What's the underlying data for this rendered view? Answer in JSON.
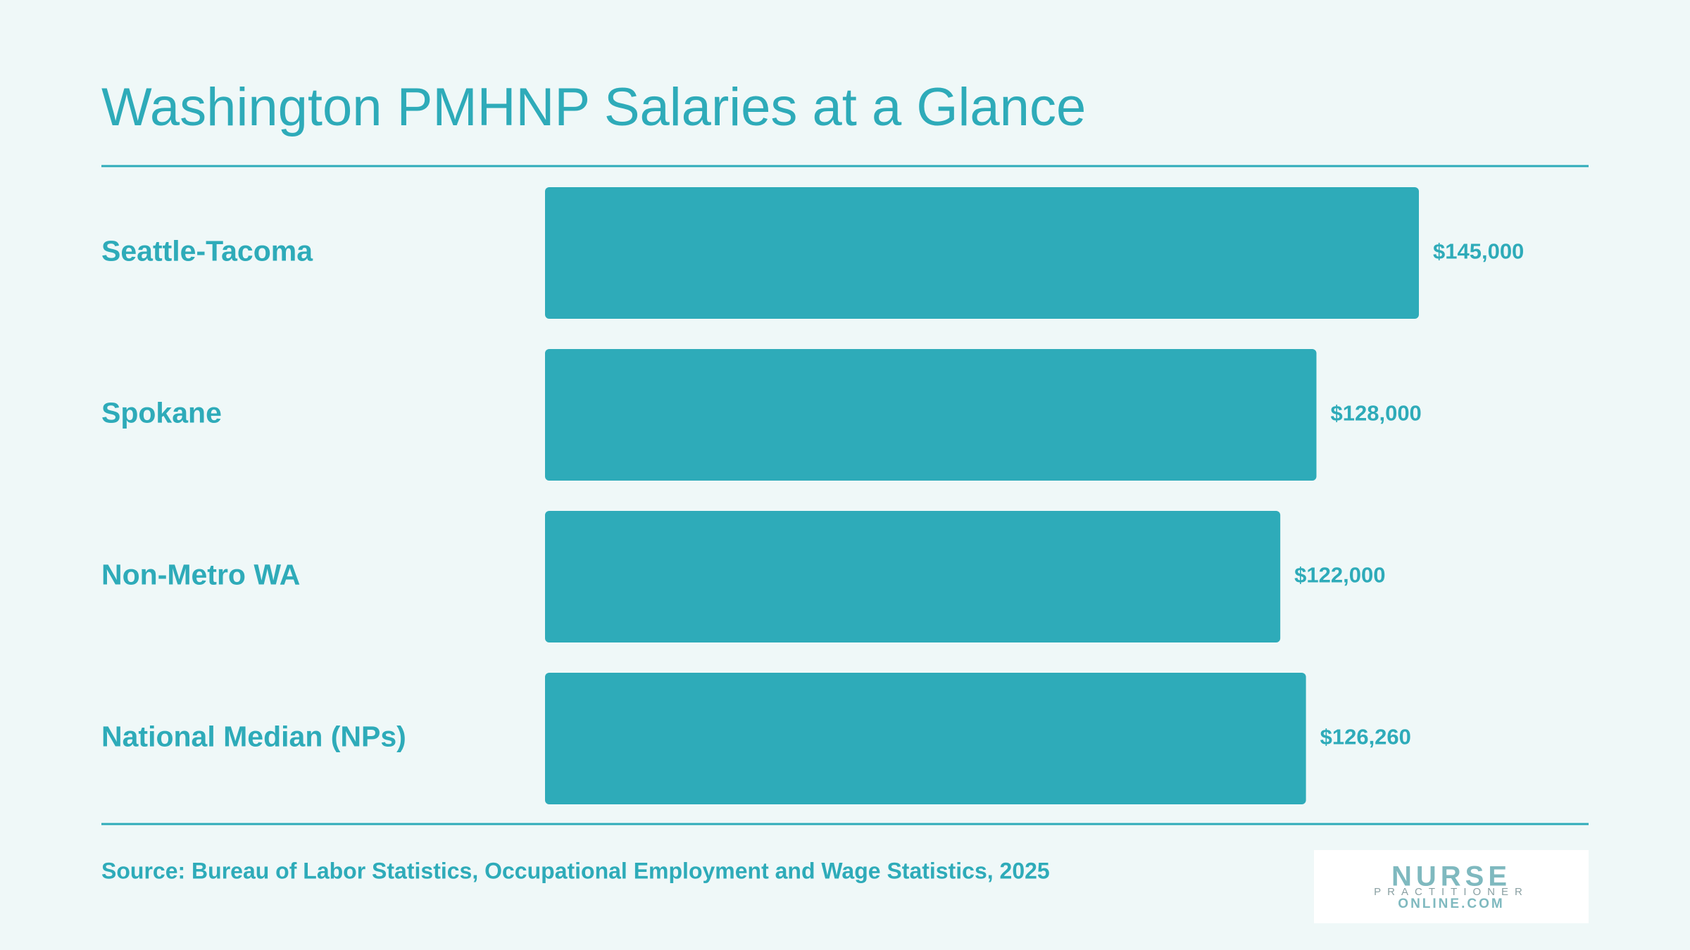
{
  "chart_data": {
    "type": "bar",
    "orientation": "horizontal",
    "title": "Washington PMHNP Salaries at a Glance",
    "categories": [
      "Seattle-Tacoma",
      "Spokane",
      "Non-Metro WA",
      "National Median (NPs)"
    ],
    "values": [
      145000,
      128000,
      122000,
      126260
    ],
    "value_labels": [
      "$145,000",
      "$128,000",
      "$122,000",
      "$126,260"
    ],
    "color": "#2eabb9",
    "source": "Source: Bureau of Labor Statistics, Occupational Employment and Wage Statistics, 2025"
  },
  "logo": {
    "line1": "NURSE",
    "line2": "PRACTITIONER",
    "line3": "ONLINE.COM"
  }
}
